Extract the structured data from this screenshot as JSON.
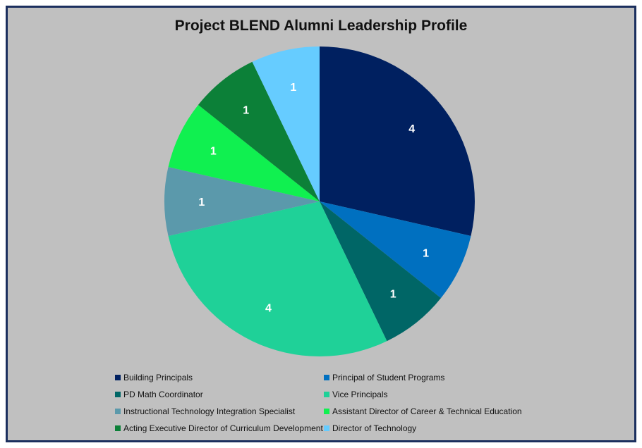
{
  "chart_data": {
    "type": "pie",
    "title": "Project BLEND Alumni Leadership Profile",
    "slices": [
      {
        "label": "Building Principals",
        "value": 4,
        "color": "#002060"
      },
      {
        "label": "Principal of Student Programs",
        "value": 1,
        "color": "#0070c0"
      },
      {
        "label": "PD Math Coordinator",
        "value": 1,
        "color": "#006666"
      },
      {
        "label": "Vice Principals",
        "value": 4,
        "color": "#1fd198"
      },
      {
        "label": "Instructional Technology Integration Specialist",
        "value": 1,
        "color": "#5b99ab"
      },
      {
        "label": "Assistant Director of Career & Technical Education",
        "value": 1,
        "color": "#10f050"
      },
      {
        "label": "Acting Executive Director of Curriculum Development",
        "value": 1,
        "color": "#0c8038"
      },
      {
        "label": "Director of Technology",
        "value": 1,
        "color": "#66ccff"
      }
    ],
    "legend_position": "bottom"
  }
}
